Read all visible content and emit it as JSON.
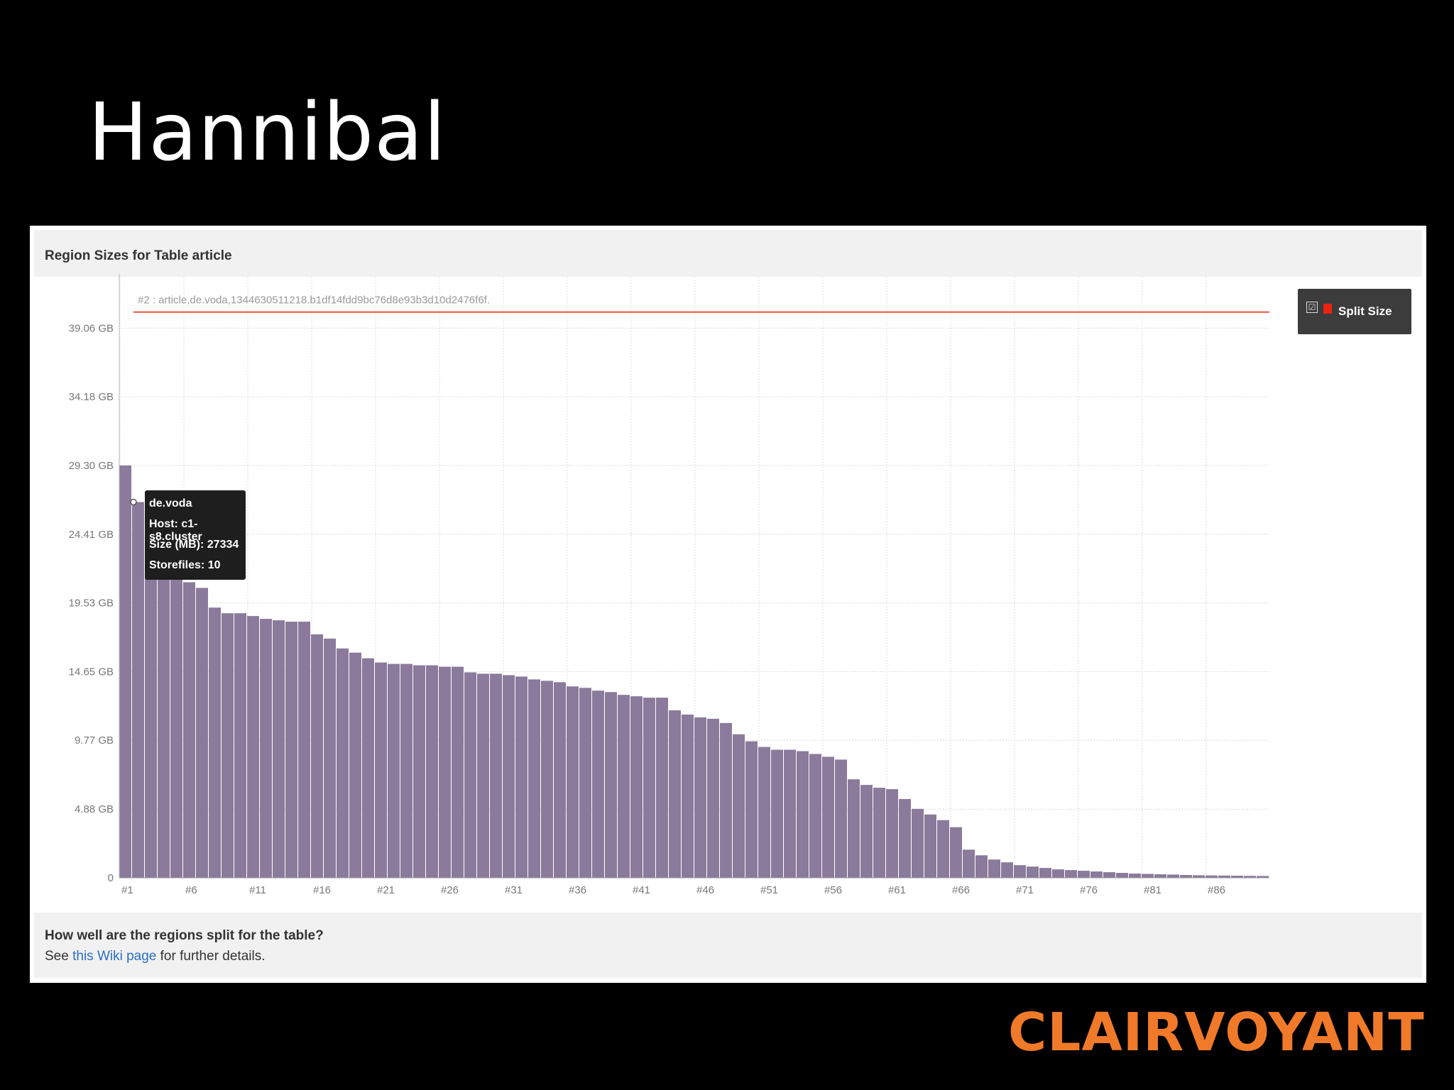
{
  "slide": {
    "title": "Hannibal",
    "brand": "CLAIRVOYANT"
  },
  "panel": {
    "header": "Region Sizes for Table article",
    "footer_question": "How well are the regions split for the table?",
    "footer_prefix": "See ",
    "footer_link": "this Wiki page",
    "footer_suffix": " for further details."
  },
  "legend": {
    "label": "Split Size",
    "checked_glyph": "☑",
    "swatch_color": "#ee1111"
  },
  "tooltip": {
    "title": "de.voda",
    "host": "Host: c1-s8.cluster",
    "size": "Size (MB): 27334",
    "storefiles": "Storefiles: 10"
  },
  "colors": {
    "bar": "#8b7a9b",
    "split_line": "#e8553f",
    "accent": "#f07a2a"
  },
  "chart_data": {
    "type": "bar",
    "title": "Region Sizes for Table article",
    "y_unit": "GB",
    "y_ticks": [
      "0",
      "4.88 GB",
      "9.77 GB",
      "14.65 GB",
      "19.53 GB",
      "24.41 GB",
      "29.30 GB",
      "34.18 GB",
      "39.06 GB"
    ],
    "y_tick_values": [
      0,
      4.88,
      9.77,
      14.65,
      19.53,
      24.41,
      29.3,
      34.18,
      39.06
    ],
    "ylim": [
      0,
      41.8
    ],
    "x_ticks": [
      "#1",
      "#6",
      "#11",
      "#16",
      "#21",
      "#26",
      "#31",
      "#36",
      "#41",
      "#46",
      "#51",
      "#56",
      "#61",
      "#66",
      "#71",
      "#76",
      "#81",
      "#86"
    ],
    "split_size_gb": 40.2,
    "split_label": "#2 : article,de.voda,1344630511218.b1df14fdd9bc76d8e93b3d10d2476f6f.",
    "series": [
      {
        "name": "Split Size",
        "values": [
          29.3,
          26.7,
          25.0,
          23.5,
          22.2,
          21.0,
          20.6,
          19.2,
          18.8,
          18.8,
          18.6,
          18.4,
          18.3,
          18.2,
          18.2,
          17.3,
          17.0,
          16.3,
          16.0,
          15.6,
          15.3,
          15.2,
          15.2,
          15.1,
          15.1,
          15.0,
          15.0,
          14.6,
          14.5,
          14.5,
          14.4,
          14.3,
          14.1,
          14.0,
          13.9,
          13.6,
          13.5,
          13.3,
          13.2,
          13.0,
          12.9,
          12.8,
          12.8,
          11.9,
          11.6,
          11.4,
          11.3,
          11.0,
          10.2,
          9.7,
          9.3,
          9.1,
          9.1,
          9.0,
          8.8,
          8.6,
          8.4,
          7.0,
          6.6,
          6.4,
          6.3,
          5.6,
          4.9,
          4.5,
          4.1,
          3.6,
          2.0,
          1.6,
          1.3,
          1.1,
          0.9,
          0.8,
          0.7,
          0.6,
          0.55,
          0.5,
          0.45,
          0.4,
          0.35,
          0.3,
          0.28,
          0.25,
          0.23,
          0.2,
          0.18,
          0.17,
          0.16,
          0.15,
          0.14,
          0.13
        ]
      }
    ],
    "grid": true
  }
}
